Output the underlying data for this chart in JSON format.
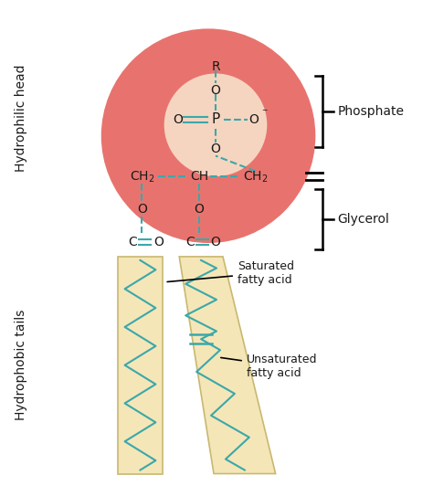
{
  "bg_color": "#ffffff",
  "head_circle_color": "#e8736e",
  "head_circle_inner_color": "#f5d5c0",
  "tail_fill_color": "#f5e6b8",
  "tail_border_color": "#c8b870",
  "bond_color": "#3aa8aa",
  "text_color": "#1a1a1a",
  "phosphate_label": "Phosphate",
  "glycerol_label": "Glycerol",
  "saturated_label": "Saturated\nfatty acid",
  "unsaturated_label": "Unsaturated\nfatty acid",
  "hydrophilic_label": "Hydrophilic head",
  "hydrophobic_label": "Hydrophobic tails"
}
